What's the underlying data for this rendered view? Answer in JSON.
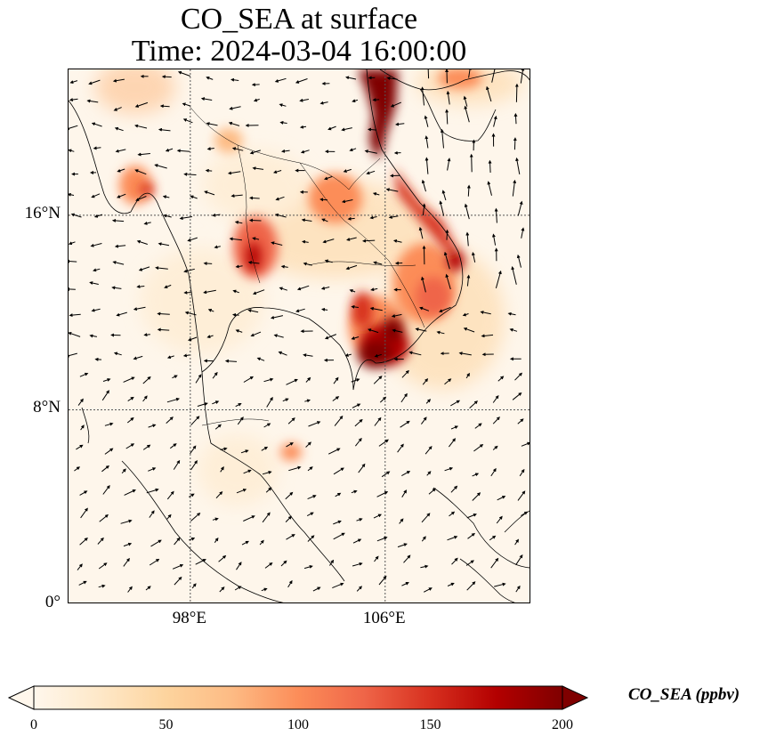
{
  "title": {
    "line1": "CO_SEA at surface",
    "line2": "Time: 2024-03-04 16:00:00"
  },
  "map": {
    "lat_ticks": [
      "16°N",
      "8°N",
      "0°"
    ],
    "lon_ticks": [
      "98°E",
      "106°E"
    ],
    "extent": {
      "lon_min": 93,
      "lon_max": 112,
      "lat_min": 0,
      "lat_max": 22
    },
    "lat_values": [
      16,
      8,
      0
    ],
    "lon_values": [
      98,
      106
    ]
  },
  "colorbar": {
    "label": "CO_SEA (ppbv)",
    "ticks": [
      "0",
      "50",
      "100",
      "150",
      "200"
    ],
    "min": 0,
    "max": 200,
    "colormap": "OrRd",
    "colors": [
      "#fff7ec",
      "#fee8c8",
      "#fdd49e",
      "#fdbb84",
      "#fc8d59",
      "#ef6548",
      "#d7301f",
      "#b30000",
      "#7f0000"
    ]
  }
}
